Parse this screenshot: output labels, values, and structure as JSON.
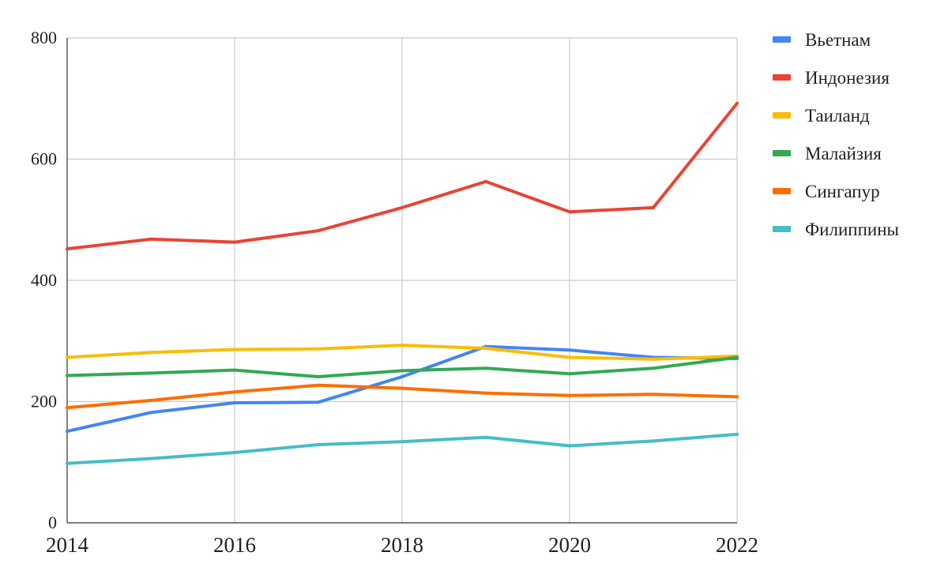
{
  "chart_data": {
    "type": "line",
    "title": "",
    "xlabel": "",
    "ylabel": "",
    "x": [
      2014,
      2015,
      2016,
      2017,
      2018,
      2019,
      2020,
      2021,
      2022
    ],
    "xlim": [
      2014,
      2022
    ],
    "ylim": [
      0,
      800
    ],
    "x_ticks": [
      2014,
      2016,
      2018,
      2020,
      2022
    ],
    "y_ticks": [
      0,
      200,
      400,
      600,
      800
    ],
    "grid": true,
    "legend_position": "right",
    "series": [
      {
        "name": "Вьетнам",
        "color": "#4285F4",
        "values": [
          151,
          182,
          198,
          199,
          241,
          291,
          285,
          273,
          271
        ]
      },
      {
        "name": "Индонезия",
        "color": "#EA4335",
        "values": [
          452,
          468,
          463,
          482,
          520,
          563,
          513,
          520,
          692
        ]
      },
      {
        "name": "Таиланд",
        "color": "#FBBC04",
        "values": [
          273,
          281,
          286,
          287,
          293,
          288,
          273,
          270,
          275
        ]
      },
      {
        "name": "Малайзия",
        "color": "#34A853",
        "values": [
          243,
          247,
          252,
          241,
          251,
          255,
          246,
          255,
          273
        ]
      },
      {
        "name": "Сингапур",
        "color": "#FF6D01",
        "values": [
          190,
          202,
          216,
          227,
          222,
          214,
          210,
          212,
          208
        ]
      },
      {
        "name": "Филиппины",
        "color": "#46BDC6",
        "values": [
          98,
          106,
          116,
          129,
          134,
          141,
          127,
          135,
          146
        ]
      }
    ]
  }
}
